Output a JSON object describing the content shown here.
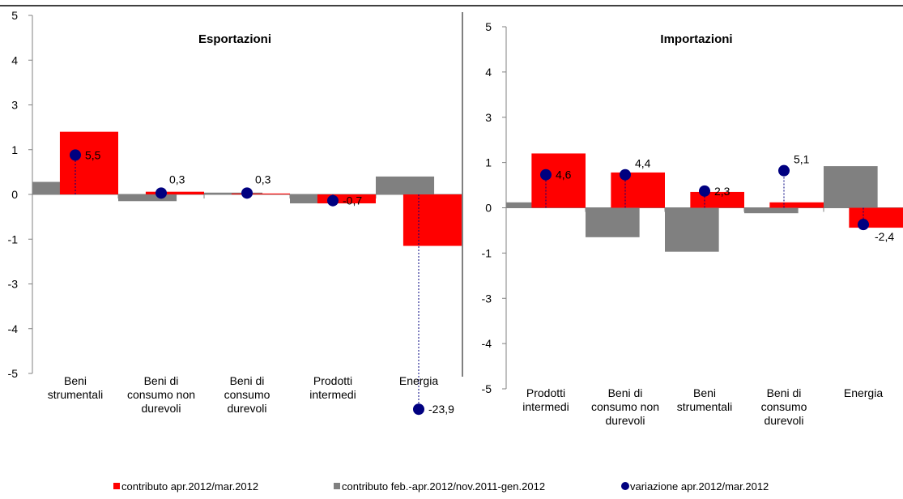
{
  "chart_data": [
    {
      "type": "bar",
      "title": "Esportazioni",
      "categories": [
        [
          "Beni",
          "strumentali"
        ],
        [
          "Beni di",
          "consumo non",
          "durevoli"
        ],
        [
          "Beni di",
          "consumo",
          "durevoli"
        ],
        [
          "Prodotti",
          "intermedi"
        ],
        [
          "Energia"
        ]
      ],
      "yticks": [
        "5",
        "4",
        "3",
        "1",
        "0",
        "-1",
        "-3",
        "-4",
        "-5"
      ],
      "series": [
        {
          "name": "contributo feb.-apr.2012/nov.2011-gen.2012",
          "kind": "bar",
          "color": "#808080",
          "values": [
            0.28,
            -0.15,
            0.04,
            -0.2,
            0.4
          ]
        },
        {
          "name": "contributo apr.2012/mar.2012",
          "kind": "bar",
          "color": "#ff0000",
          "values": [
            1.4,
            0.06,
            0.02,
            -0.2,
            -1.15
          ]
        },
        {
          "name": "variazione apr.2012/mar.2012",
          "kind": "point",
          "color": "#000080",
          "values": [
            0.88,
            0.03,
            0.03,
            -0.14,
            -4.8
          ],
          "labels": [
            "5,5",
            "0,3",
            "0,3",
            "-0,7",
            "-23,9"
          ]
        }
      ]
    },
    {
      "type": "bar",
      "title": "Importazioni",
      "categories": [
        [
          "Prodotti",
          "intermedi"
        ],
        [
          "Beni di",
          "consumo non",
          "durevoli"
        ],
        [
          "Beni",
          "strumentali"
        ],
        [
          "Beni di",
          "consumo",
          "durevoli"
        ],
        [
          "Energia"
        ]
      ],
      "yticks": [
        "5",
        "4",
        "3",
        "1",
        "0",
        "-1",
        "-3",
        "-4",
        "-5"
      ],
      "series": [
        {
          "name": "contributo feb.-apr.2012/nov.2011-gen.2012",
          "kind": "bar",
          "color": "#808080",
          "values": [
            0.12,
            -0.65,
            -0.97,
            -0.12,
            0.92
          ]
        },
        {
          "name": "contributo apr.2012/mar.2012",
          "kind": "bar",
          "color": "#ff0000",
          "values": [
            1.2,
            0.78,
            0.35,
            0.12,
            -0.44
          ]
        },
        {
          "name": "variazione apr.2012/mar.2012",
          "kind": "point",
          "color": "#000080",
          "values": [
            0.73,
            0.73,
            0.37,
            0.82,
            -0.37
          ],
          "labels": [
            "4,6",
            "4,4",
            "2,3",
            "5,1",
            "-2,4"
          ]
        }
      ]
    }
  ],
  "legend": [
    {
      "label": "contributo apr.2012/mar.2012",
      "kind": "square",
      "color": "#ff0000"
    },
    {
      "label": "contributo feb.-apr.2012/nov.2011-gen.2012",
      "kind": "square",
      "color": "#808080"
    },
    {
      "label": "variazione apr.2012/mar.2012",
      "kind": "circle",
      "color": "#000080"
    }
  ]
}
